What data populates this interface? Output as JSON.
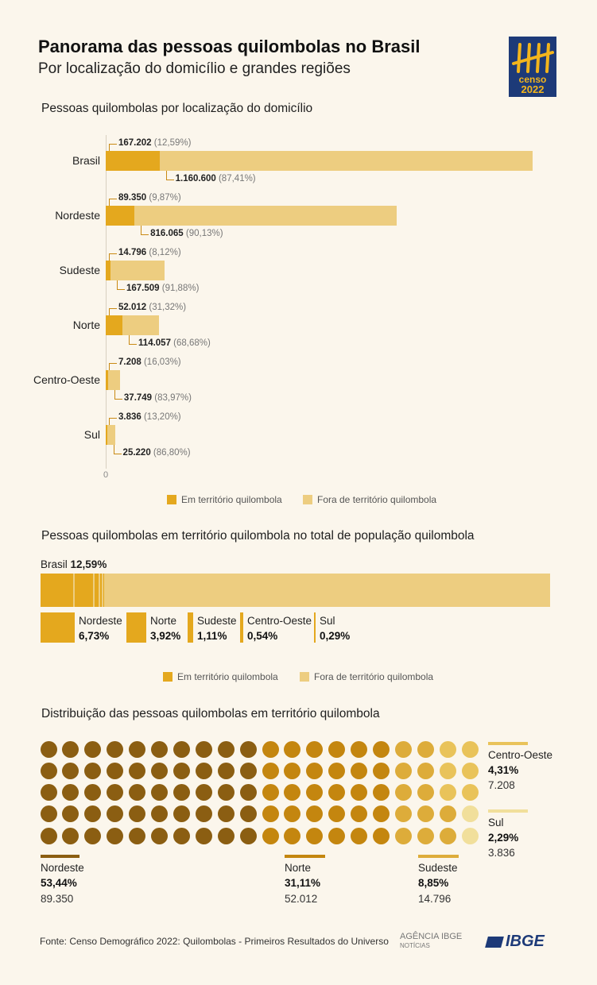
{
  "header": {
    "title": "Panorama das pessoas quilombolas no Brasil",
    "subtitle": "Por localização do domicílio e grandes regiões",
    "logo_line1": "censo",
    "logo_line2": "2022"
  },
  "colors": {
    "inside": "#e4a81e",
    "outside": "#edcd80",
    "nordeste": "#8b5e12",
    "norte": "#c4860f",
    "sudeste": "#ddac3a",
    "centro_oeste": "#e9c35a",
    "sul": "#f1df9b",
    "logo_bg": "#1d3a78",
    "logo_fg": "#f3b51c"
  },
  "chart_data": [
    {
      "type": "bar",
      "orientation": "horizontal",
      "stacked": true,
      "title": "Pessoas quilombolas por localização do domicílio",
      "categories": [
        "Brasil",
        "Nordeste",
        "Sudeste",
        "Norte",
        "Centro-Oeste",
        "Sul"
      ],
      "series": [
        {
          "name": "Em território quilombola",
          "values": [
            167202,
            89350,
            14796,
            52012,
            7208,
            3836
          ],
          "labels": [
            "167.202",
            "89.350",
            "14.796",
            "52.012",
            "7.208",
            "3.836"
          ],
          "pct": [
            "(12,59%)",
            "(9,87%)",
            "(8,12%)",
            "(31,32%)",
            "(16,03%)",
            "(13,20%)"
          ]
        },
        {
          "name": "Fora de território quilombola",
          "values": [
            1160600,
            816065,
            167509,
            114057,
            37749,
            25220
          ],
          "labels": [
            "1.160.600",
            "816.065",
            "167.509",
            "114.057",
            "37.749",
            "25.220"
          ],
          "pct": [
            "(87,41%)",
            "(90,13%)",
            "(91,88%)",
            "(68,68%)",
            "(83,97%)",
            "(86,80%)"
          ]
        }
      ],
      "xlim": [
        0,
        1327802
      ],
      "x_tick_label": "0",
      "legend": "bottom"
    },
    {
      "type": "bar",
      "stacked": true,
      "title": "Pessoas quilombolas em território quilombola no total de população quilombola",
      "total_label": "Brasil",
      "total_value": "12,59%",
      "total_percent": 12.59,
      "categories": [
        "Nordeste",
        "Norte",
        "Sudeste",
        "Centro-Oeste",
        "Sul"
      ],
      "values": [
        6.73,
        3.92,
        1.11,
        0.54,
        0.29
      ],
      "value_labels": [
        "6,73%",
        "3,92%",
        "1,11%",
        "0,54%",
        "0,29%"
      ],
      "legend_labels": [
        "Em território quilombola",
        "Fora de território quilombola"
      ],
      "legend": "bottom"
    },
    {
      "type": "waffle",
      "title": "Distribuição das pessoas quilombolas em território quilombola",
      "rows": 5,
      "columns": 20,
      "categories": [
        "Nordeste",
        "Norte",
        "Sudeste",
        "Centro-Oeste",
        "Sul"
      ],
      "values": [
        89350,
        52012,
        14796,
        7208,
        3836
      ],
      "value_labels": [
        "89.350",
        "52.012",
        "14.796",
        "7.208",
        "3.836"
      ],
      "percent_labels": [
        "53,44%",
        "31,11%",
        "8,85%",
        "4,31%",
        "2,29%"
      ],
      "dots": [
        50,
        30,
        10,
        7,
        3
      ]
    }
  ],
  "footer": {
    "source": "Fonte: Censo Demográfico 2022: Quilombolas - Primeiros Resultados do Universo",
    "agencia_line1": "AGÊNCIA IBGE",
    "agencia_line2": "NOTÍCIAS",
    "ibge": "IBGE"
  }
}
